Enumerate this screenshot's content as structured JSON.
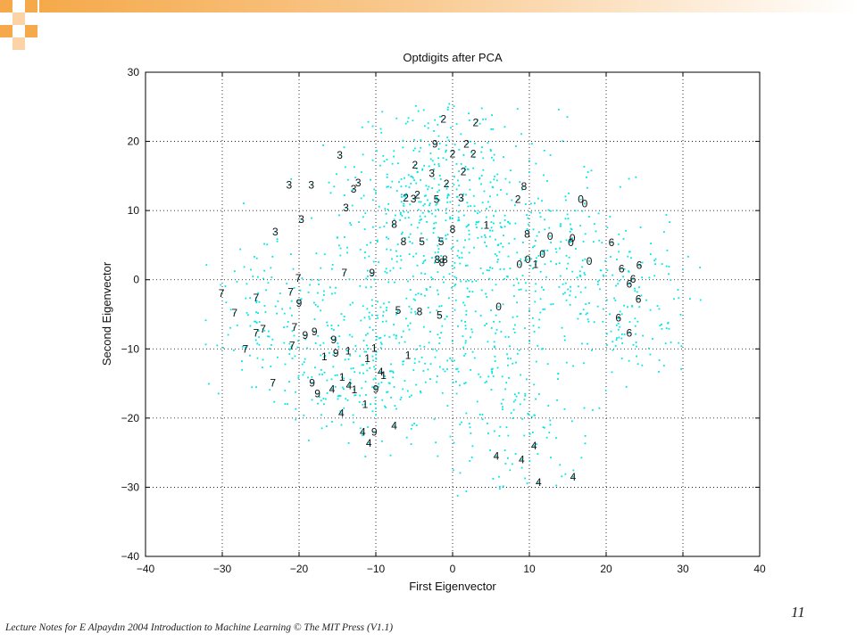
{
  "slide": {
    "page_number": "11",
    "footer": "Lecture Notes for E Alpaydın 2004 Introduction to Machine Learning © The MIT Press (V1.1)",
    "accent_colors": [
      "#f5a94a",
      "#fbd3a6"
    ]
  },
  "chart_data": {
    "type": "scatter",
    "title": "Optdigits after PCA",
    "xlabel": "First Eigenvector",
    "ylabel": "Second Eigenvector",
    "xlim": [
      -40,
      40
    ],
    "ylim": [
      -40,
      30
    ],
    "xticks": [
      -40,
      -30,
      -20,
      -10,
      0,
      10,
      20,
      30,
      40
    ],
    "yticks": [
      -40,
      -30,
      -20,
      -10,
      0,
      10,
      20,
      30
    ],
    "xtick_labels": [
      "−40",
      "−30",
      "−20",
      "−10",
      "0",
      "10",
      "20",
      "30",
      "40"
    ],
    "ytick_labels": [
      "−40",
      "−30",
      "−20",
      "−10",
      "0",
      "10",
      "20",
      "30"
    ],
    "grid": true,
    "cloud_color": "#00e5e5",
    "label_color": "#111111",
    "labeled_points": [
      {
        "label": "2",
        "x": -1.2,
        "y": 23.2
      },
      {
        "label": "2",
        "x": 3.0,
        "y": 22.7
      },
      {
        "label": "9",
        "x": -2.3,
        "y": 19.6
      },
      {
        "label": "2",
        "x": 1.8,
        "y": 19.6
      },
      {
        "label": "2",
        "x": 0.0,
        "y": 18.2
      },
      {
        "label": "2",
        "x": 2.7,
        "y": 18.2
      },
      {
        "label": "3",
        "x": -14.7,
        "y": 18.0
      },
      {
        "label": "2",
        "x": -4.9,
        "y": 16.6
      },
      {
        "label": "3",
        "x": -2.7,
        "y": 15.4
      },
      {
        "label": "2",
        "x": 1.4,
        "y": 15.6
      },
      {
        "label": "3",
        "x": -21.3,
        "y": 13.7
      },
      {
        "label": "3",
        "x": -18.4,
        "y": 13.7
      },
      {
        "label": "3",
        "x": -12.3,
        "y": 14.0
      },
      {
        "label": "3",
        "x": -12.9,
        "y": 13.1
      },
      {
        "label": "2",
        "x": -0.8,
        "y": 13.9
      },
      {
        "label": "8",
        "x": 9.3,
        "y": 13.5
      },
      {
        "label": "2",
        "x": -6.1,
        "y": 11.8
      },
      {
        "label": "3",
        "x": -5.1,
        "y": 11.7
      },
      {
        "label": "2",
        "x": -4.6,
        "y": 12.3
      },
      {
        "label": "5",
        "x": -2.1,
        "y": 11.6
      },
      {
        "label": "3",
        "x": 1.1,
        "y": 11.8
      },
      {
        "label": "2",
        "x": 8.5,
        "y": 11.6
      },
      {
        "label": "0",
        "x": 16.7,
        "y": 11.6
      },
      {
        "label": "0",
        "x": 17.2,
        "y": 11.0
      },
      {
        "label": "3",
        "x": -13.9,
        "y": 10.4
      },
      {
        "label": "3",
        "x": -19.7,
        "y": 8.7
      },
      {
        "label": "8",
        "x": -7.6,
        "y": 8.0
      },
      {
        "label": "1",
        "x": 4.4,
        "y": 7.9
      },
      {
        "label": "8",
        "x": 0.0,
        "y": 7.3
      },
      {
        "label": "3",
        "x": -23.1,
        "y": 6.9
      },
      {
        "label": "8",
        "x": 9.7,
        "y": 6.6
      },
      {
        "label": "0",
        "x": 12.7,
        "y": 6.3
      },
      {
        "label": "8",
        "x": -6.4,
        "y": 5.5
      },
      {
        "label": "5",
        "x": -4.0,
        "y": 5.5
      },
      {
        "label": "5",
        "x": -1.5,
        "y": 5.5
      },
      {
        "label": "0",
        "x": 15.6,
        "y": 6.0
      },
      {
        "label": "0",
        "x": 15.4,
        "y": 5.4
      },
      {
        "label": "6",
        "x": 20.7,
        "y": 5.4
      },
      {
        "label": "0",
        "x": 11.7,
        "y": 3.7
      },
      {
        "label": "8",
        "x": -2.0,
        "y": 2.9
      },
      {
        "label": "8",
        "x": -1.0,
        "y": 2.9
      },
      {
        "label": "8",
        "x": -1.4,
        "y": 2.5
      },
      {
        "label": "0",
        "x": 9.8,
        "y": 2.9
      },
      {
        "label": "0",
        "x": 17.8,
        "y": 2.7
      },
      {
        "label": "0",
        "x": 8.7,
        "y": 2.2
      },
      {
        "label": "1",
        "x": 10.8,
        "y": 2.2
      },
      {
        "label": "6",
        "x": 24.3,
        "y": 2.1
      },
      {
        "label": "7",
        "x": -14.1,
        "y": 1.0
      },
      {
        "label": "9",
        "x": -10.5,
        "y": 1.0
      },
      {
        "label": "6",
        "x": 22.0,
        "y": 1.6
      },
      {
        "label": "6",
        "x": 23.5,
        "y": 0.1
      },
      {
        "label": "7",
        "x": -20.1,
        "y": 0.2
      },
      {
        "label": "6",
        "x": 23.0,
        "y": -0.6
      },
      {
        "label": "7",
        "x": -30.1,
        "y": -2.0
      },
      {
        "label": "7",
        "x": -25.6,
        "y": -2.6
      },
      {
        "label": "7",
        "x": -21.1,
        "y": -1.8
      },
      {
        "label": "6",
        "x": 24.2,
        "y": -2.8
      },
      {
        "label": "9",
        "x": -20.0,
        "y": -3.4
      },
      {
        "label": "5",
        "x": -7.1,
        "y": -4.4
      },
      {
        "label": "8",
        "x": -4.3,
        "y": -4.6
      },
      {
        "label": "0",
        "x": 6.0,
        "y": -3.9
      },
      {
        "label": "5",
        "x": -1.7,
        "y": -5.1
      },
      {
        "label": "7",
        "x": -28.4,
        "y": -4.8
      },
      {
        "label": "6",
        "x": 21.6,
        "y": -5.5
      },
      {
        "label": "7",
        "x": -24.7,
        "y": -7.1
      },
      {
        "label": "7",
        "x": -20.6,
        "y": -6.9
      },
      {
        "label": "7",
        "x": -25.6,
        "y": -7.7
      },
      {
        "label": "9",
        "x": -18.0,
        "y": -7.5
      },
      {
        "label": "9",
        "x": -19.2,
        "y": -8.0
      },
      {
        "label": "6",
        "x": 23.0,
        "y": -7.7
      },
      {
        "label": "9",
        "x": -15.5,
        "y": -8.7
      },
      {
        "label": "7",
        "x": -27.0,
        "y": -10.0
      },
      {
        "label": "7",
        "x": -20.9,
        "y": -9.5
      },
      {
        "label": "1",
        "x": -13.6,
        "y": -10.3
      },
      {
        "label": "1",
        "x": -10.2,
        "y": -9.9
      },
      {
        "label": "9",
        "x": -15.2,
        "y": -10.6
      },
      {
        "label": "1",
        "x": -16.7,
        "y": -11.1
      },
      {
        "label": "1",
        "x": -5.8,
        "y": -10.9
      },
      {
        "label": "1",
        "x": -11.1,
        "y": -11.4
      },
      {
        "label": "4",
        "x": -9.4,
        "y": -13.3
      },
      {
        "label": "1",
        "x": -9.0,
        "y": -13.8
      },
      {
        "label": "7",
        "x": -23.4,
        "y": -14.9
      },
      {
        "label": "9",
        "x": -18.3,
        "y": -14.9
      },
      {
        "label": "1",
        "x": -14.4,
        "y": -14.1
      },
      {
        "label": "4",
        "x": -13.5,
        "y": -15.3
      },
      {
        "label": "4",
        "x": -15.7,
        "y": -15.8
      },
      {
        "label": "1",
        "x": -12.8,
        "y": -15.9
      },
      {
        "label": "9",
        "x": -10.0,
        "y": -15.8
      },
      {
        "label": "9",
        "x": -17.6,
        "y": -16.5
      },
      {
        "label": "1",
        "x": -11.4,
        "y": -18.0
      },
      {
        "label": "4",
        "x": -14.5,
        "y": -19.3
      },
      {
        "label": "4",
        "x": -7.6,
        "y": -21.1
      },
      {
        "label": "4",
        "x": -11.7,
        "y": -22.0
      },
      {
        "label": "9",
        "x": -10.2,
        "y": -22.0
      },
      {
        "label": "4",
        "x": -10.9,
        "y": -23.6
      },
      {
        "label": "4",
        "x": 10.6,
        "y": -24.0
      },
      {
        "label": "4",
        "x": 5.7,
        "y": -25.5
      },
      {
        "label": "4",
        "x": 9.0,
        "y": -26.0
      },
      {
        "label": "4",
        "x": 15.7,
        "y": -28.5
      },
      {
        "label": "4",
        "x": 11.2,
        "y": -29.3
      }
    ]
  }
}
